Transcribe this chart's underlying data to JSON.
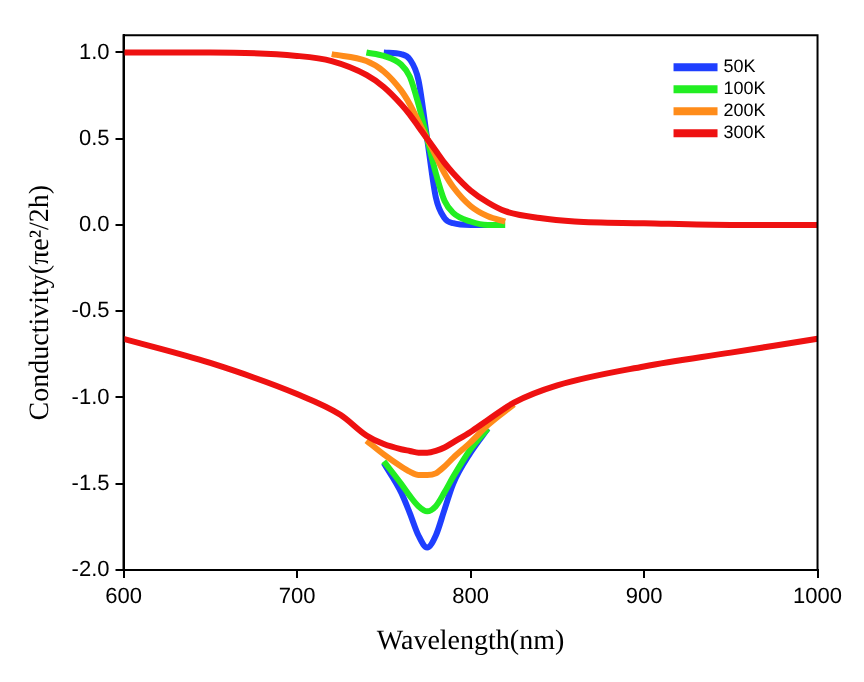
{
  "chart_data": {
    "type": "line",
    "xlabel": "Wavelength(nm)",
    "ylabel": "Conductivity(πe²/2h)",
    "xlim": [
      600,
      1000
    ],
    "xticks": [
      600,
      700,
      800,
      900,
      1000
    ],
    "ylim": [
      -2,
      1.1
    ],
    "yticks": [
      {
        "value": -2,
        "label": "-2.0"
      },
      -1.5,
      {
        "value": -1,
        "label": "-1.0"
      },
      -0.5,
      {
        "value": 0,
        "label": "0.0"
      },
      0.5,
      {
        "value": 1,
        "label": "1.0"
      }
    ],
    "grid": false,
    "legend": "top right",
    "marker": "none",
    "line_style": "solid",
    "series": [
      {
        "name": "50K",
        "color": "#1f3fff",
        "x": [
          750,
          760,
          765,
          770,
          775,
          780,
          785,
          790,
          800,
          810
        ],
        "values": [
          1,
          0.99,
          0.96,
          0.84,
          0.5,
          0.16,
          0.04,
          0.01,
          0,
          0
        ]
      },
      {
        "color": "#1f3fff",
        "x": [
          750,
          760,
          765,
          770,
          775,
          780,
          785,
          790,
          800,
          810
        ],
        "values": [
          -1.38,
          -1.55,
          -1.67,
          -1.8,
          -1.87,
          -1.8,
          -1.65,
          -1.5,
          -1.32,
          -1.18
        ]
      },
      {
        "name": "100K",
        "color": "#22ee22",
        "x": [
          740,
          750,
          760,
          765,
          770,
          775,
          780,
          785,
          790,
          800,
          810,
          820
        ],
        "values": [
          1,
          0.98,
          0.93,
          0.86,
          0.7,
          0.5,
          0.3,
          0.14,
          0.07,
          0.02,
          0,
          0
        ]
      },
      {
        "color": "#22ee22",
        "x": [
          750,
          760,
          765,
          770,
          775,
          780,
          785,
          790,
          800,
          810
        ],
        "values": [
          -1.37,
          -1.5,
          -1.57,
          -1.63,
          -1.66,
          -1.63,
          -1.55,
          -1.46,
          -1.3,
          -1.18
        ]
      },
      {
        "name": "200K",
        "color": "#ff8c1a",
        "x": [
          720,
          740,
          750,
          760,
          765,
          770,
          775,
          780,
          785,
          790,
          800,
          810,
          820
        ],
        "values": [
          0.99,
          0.95,
          0.89,
          0.78,
          0.7,
          0.6,
          0.5,
          0.4,
          0.3,
          0.22,
          0.11,
          0.05,
          0.02
        ]
      },
      {
        "color": "#ff8c1a",
        "x": [
          740,
          750,
          760,
          765,
          770,
          775,
          780,
          785,
          790,
          800,
          810,
          825
        ],
        "values": [
          -1.25,
          -1.33,
          -1.4,
          -1.43,
          -1.45,
          -1.45,
          -1.44,
          -1.4,
          -1.35,
          -1.26,
          -1.16,
          -1.04
        ]
      },
      {
        "name": "300K",
        "color": "#ee1111",
        "x": [
          600,
          650,
          700,
          720,
          740,
          750,
          760,
          765,
          770,
          775,
          780,
          785,
          790,
          800,
          810,
          820,
          840,
          860,
          900,
          950,
          1000
        ],
        "values": [
          1,
          1,
          0.98,
          0.95,
          0.87,
          0.8,
          0.7,
          0.64,
          0.57,
          0.5,
          0.43,
          0.36,
          0.3,
          0.2,
          0.13,
          0.08,
          0.04,
          0.02,
          0.01,
          0,
          0
        ]
      },
      {
        "color": "#ee1111",
        "x": [
          600,
          650,
          700,
          725,
          740,
          750,
          760,
          765,
          770,
          775,
          780,
          785,
          790,
          800,
          810,
          825,
          850,
          900,
          950,
          1000
        ],
        "values": [
          -0.66,
          -0.8,
          -0.98,
          -1.1,
          -1.22,
          -1.27,
          -1.3,
          -1.31,
          -1.32,
          -1.32,
          -1.31,
          -1.29,
          -1.26,
          -1.2,
          -1.13,
          -1.03,
          -0.93,
          -0.82,
          -0.74,
          -0.66
        ]
      }
    ]
  }
}
